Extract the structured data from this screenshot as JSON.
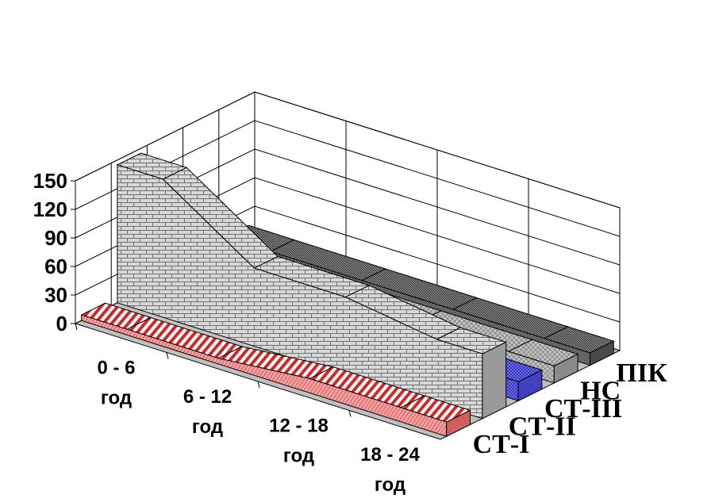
{
  "chart_data": {
    "type": "area",
    "categories": [
      "0 - 6 год",
      "6 - 12 год",
      "12 - 18 год",
      "18 - 24 год"
    ],
    "category_lines": [
      [
        "0 - 6",
        "год"
      ],
      [
        "6 - 12",
        "год"
      ],
      [
        "12 - 18",
        "год"
      ],
      [
        "18 - 24",
        "год"
      ]
    ],
    "series": [
      {
        "name": "СТ-І",
        "values": [
          6,
          6,
          15,
          15
        ]
      },
      {
        "name": "СТ-ІІ",
        "values": [
          145,
          82,
          82,
          68
        ]
      },
      {
        "name": "СТ-ІІІ",
        "values": [
          0,
          0,
          0,
          20
        ]
      },
      {
        "name": "НС",
        "values": [
          18,
          18,
          18,
          18
        ]
      },
      {
        "name": "ПІК",
        "values": [
          13,
          13,
          13,
          13
        ]
      }
    ],
    "yticks": [
      0,
      30,
      60,
      90,
      120,
      150
    ],
    "ylim": [
      0,
      150
    ],
    "grid": true,
    "projection": "3d",
    "colors": {
      "СТ-І": "#f08080",
      "СТ-ІІ": "#c8c8c8",
      "СТ-ІІІ": "#6060e8",
      "НС": "#b4b4b4",
      "ПІК": "#707070",
      "floor": "#c0c0c0"
    }
  }
}
